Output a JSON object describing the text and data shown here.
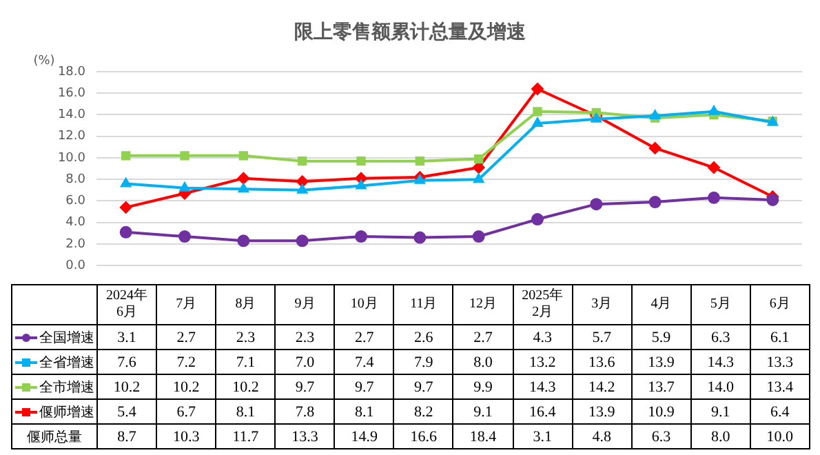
{
  "chart_data": [
    {
      "type": "line",
      "title": "限上零售额累计总量及增速",
      "ylabel": "(%)",
      "categories": [
        "2024年\n6月",
        "7月",
        "8月",
        "9月",
        "10月",
        "11月",
        "12月",
        "2025年\n2月",
        "3月",
        "4月",
        "5月",
        "6月"
      ],
      "series": [
        {
          "name": "全国增速",
          "color": "#7030a0",
          "marker": "circle",
          "values": [
            3.1,
            2.7,
            2.3,
            2.3,
            2.7,
            2.6,
            2.7,
            4.3,
            5.7,
            5.9,
            6.3,
            6.1
          ],
          "value_labels": [
            "3.1",
            "2.7",
            "2.3",
            "2.3",
            "2.7",
            "2.6",
            "2.7",
            "4.3",
            "5.7",
            "5.9",
            "6.3",
            "6.1"
          ]
        },
        {
          "name": "全省增速",
          "color": "#00b0f0",
          "marker": "triangle",
          "values": [
            7.6,
            7.2,
            7.1,
            7.0,
            7.4,
            7.9,
            8.0,
            13.2,
            13.6,
            13.9,
            14.3,
            13.3
          ],
          "value_labels": [
            "7.6",
            "7.2",
            "7.1",
            "7.0",
            "7.4",
            "7.9",
            "8.0",
            "13.2",
            "13.6",
            "13.9",
            "14.3",
            "13.3"
          ]
        },
        {
          "name": "全市增速",
          "color": "#92d050",
          "marker": "square",
          "values": [
            10.2,
            10.2,
            10.2,
            9.7,
            9.7,
            9.7,
            9.9,
            14.3,
            14.2,
            13.7,
            14.0,
            13.4
          ],
          "value_labels": [
            "10.2",
            "10.2",
            "10.2",
            "9.7",
            "9.7",
            "9.7",
            "9.9",
            "14.3",
            "14.2",
            "13.7",
            "14.0",
            "13.4"
          ]
        },
        {
          "name": "偃师增速",
          "color": "#ff0000",
          "marker": "diamond",
          "values": [
            5.4,
            6.7,
            8.1,
            7.8,
            8.1,
            8.2,
            9.1,
            16.4,
            13.9,
            10.9,
            9.1,
            6.4
          ],
          "value_labels": [
            "5.4",
            "6.7",
            "8.1",
            "7.8",
            "8.1",
            "8.2",
            "9.1",
            "16.4",
            "13.9",
            "10.9",
            "9.1",
            "6.4"
          ]
        }
      ],
      "ylim": [
        0,
        18
      ],
      "yticks": [
        {
          "value": 0,
          "label": "0.0"
        },
        {
          "value": 2,
          "label": "2.0"
        },
        {
          "value": 4,
          "label": "4.0"
        },
        {
          "value": 6,
          "label": "6.0"
        },
        {
          "value": 8,
          "label": "8.0"
        },
        {
          "value": 10,
          "label": "10.0"
        },
        {
          "value": 12,
          "label": "12.0"
        },
        {
          "value": 14,
          "label": "14.0"
        },
        {
          "value": 16,
          "label": "16.0"
        },
        {
          "value": 18,
          "label": "18.0"
        }
      ],
      "grid": "y",
      "legend": "bottom",
      "tick_labels": "y",
      "line_style": "solid"
    },
    {
      "type": "other",
      "series": [
        {
          "name": "偃师总量",
          "values": [
            8.7,
            10.3,
            11.7,
            13.3,
            14.9,
            16.6,
            18.4,
            3.1,
            4.8,
            6.3,
            8.0,
            10.0
          ],
          "value_labels": [
            "8.7",
            "10.3",
            "11.7",
            "13.3",
            "14.9",
            "16.6",
            "18.4",
            "3.1",
            "4.8",
            "6.3",
            "8.0",
            "10.0"
          ]
        }
      ]
    }
  ]
}
